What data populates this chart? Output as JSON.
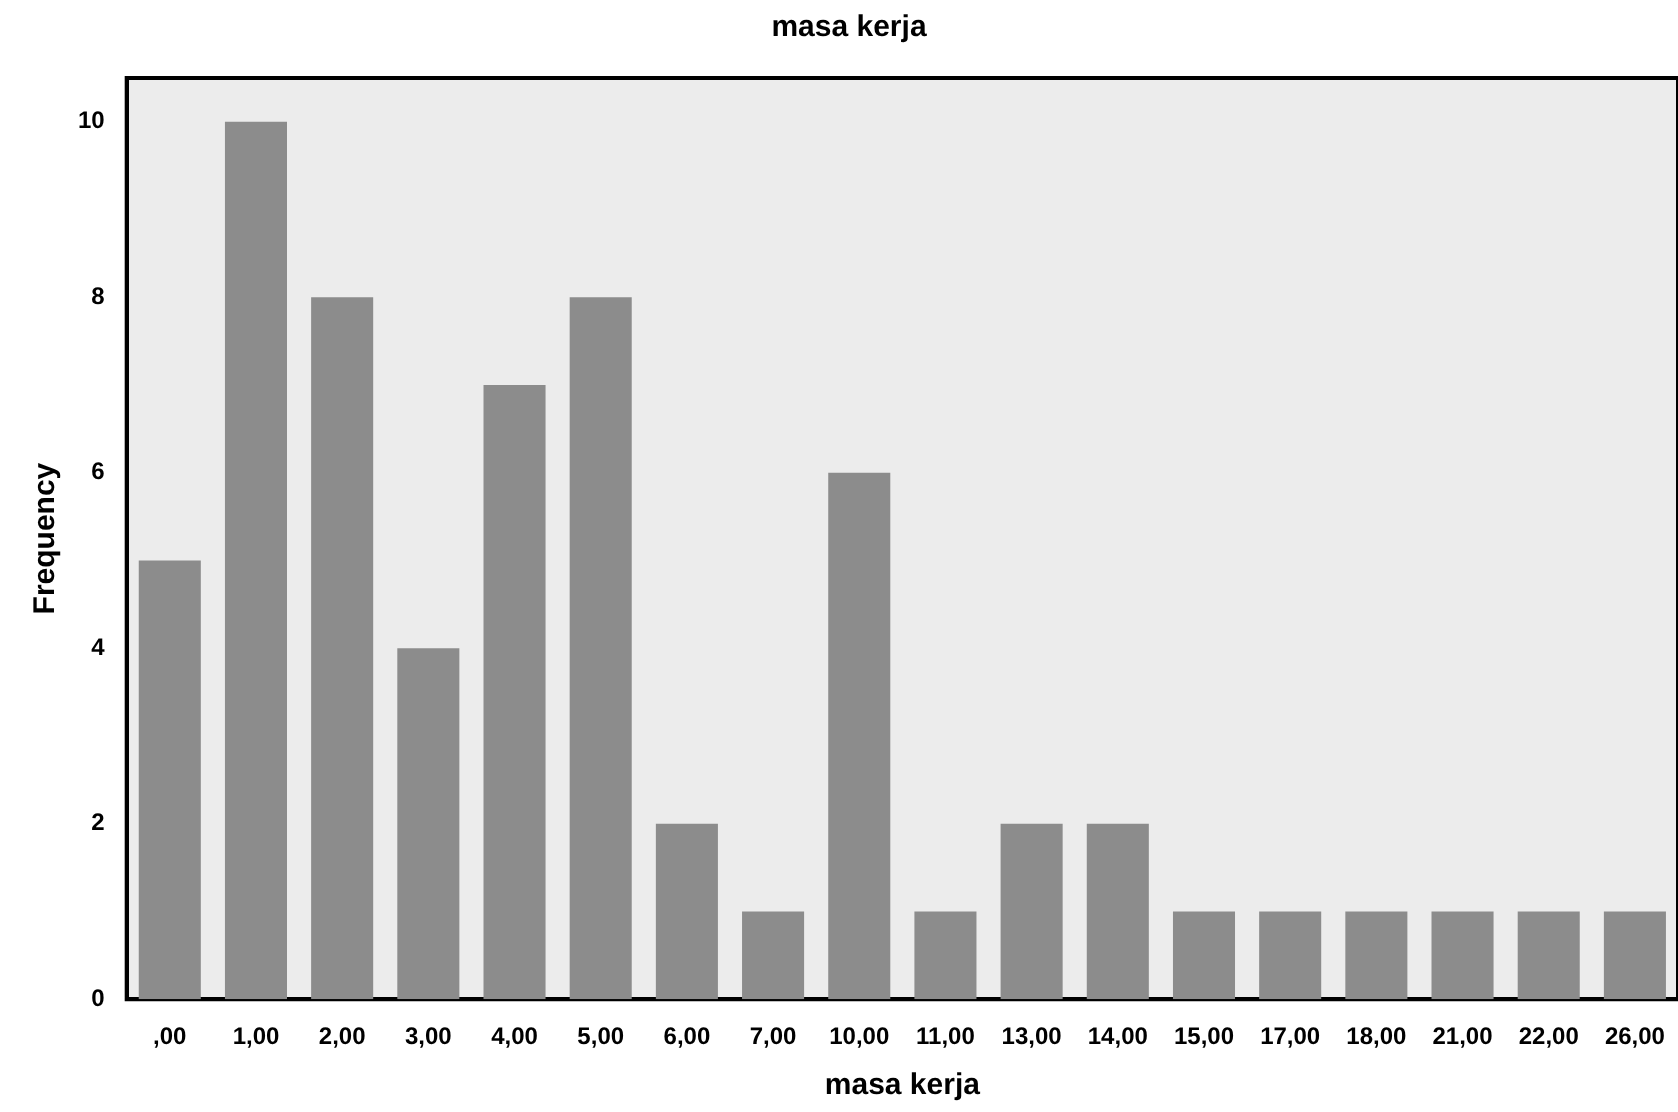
{
  "chart_data": {
    "type": "bar",
    "title": "masa kerja",
    "xlabel": "masa kerja",
    "ylabel": "Frequency",
    "categories": [
      ",00",
      "1,00",
      "2,00",
      "3,00",
      "4,00",
      "5,00",
      "6,00",
      "7,00",
      "10,00",
      "11,00",
      "13,00",
      "14,00",
      "15,00",
      "17,00",
      "18,00",
      "21,00",
      "22,00",
      "26,00"
    ],
    "values": [
      5,
      10,
      8,
      4,
      7,
      8,
      2,
      1,
      6,
      1,
      2,
      2,
      1,
      1,
      1,
      1,
      1,
      1
    ],
    "color": "#8c8c8c",
    "ylim": [
      0,
      10.5
    ],
    "yticks": [
      0,
      2,
      4,
      6,
      8,
      10
    ],
    "grid": false,
    "legend": false
  }
}
